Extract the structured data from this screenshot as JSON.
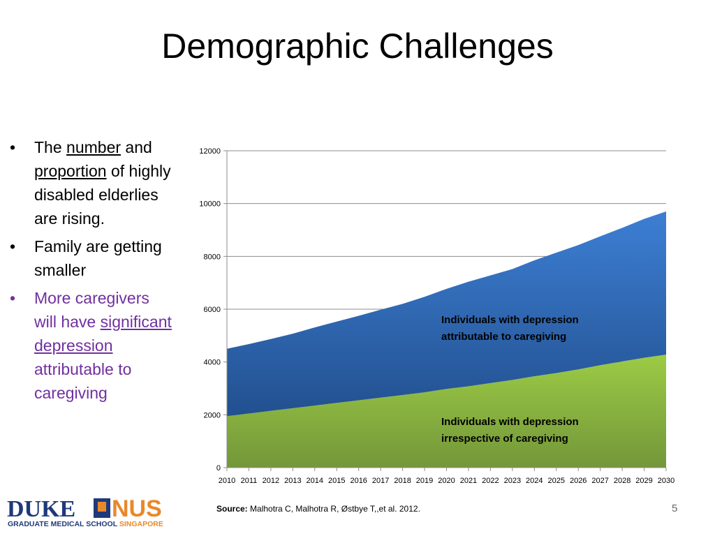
{
  "slide": {
    "title": "Demographic Challenges",
    "page_number": "5"
  },
  "bullets": {
    "b1": {
      "t1": "The ",
      "u1": "number",
      "t2": " and ",
      "u2": "proportion",
      "t3": " of highly disabled elderlies are rising."
    },
    "b2": {
      "t1": "Family are getting smaller"
    },
    "b3": {
      "t1": "More caregivers will have ",
      "u1": "significant depression",
      "t2": " attributable to caregiving"
    }
  },
  "source": {
    "label": "Source:",
    "text": " Malhotra C, Malhotra R, Østbye T,,et al. 2012."
  },
  "logo": {
    "left_text": "DUKE",
    "right_text": "NUS",
    "subtitle_a": "GRADUATE MEDICAL SCHOOL ",
    "subtitle_b": "SINGAPORE",
    "colors": {
      "navy": "#1f3a7a",
      "orange": "#e8892a"
    }
  },
  "chart_data": {
    "type": "area",
    "stacked": true,
    "x": [
      "2010",
      "2011",
      "2012",
      "2013",
      "2014",
      "2015",
      "2016",
      "2017",
      "2018",
      "2019",
      "2020",
      "2021",
      "2022",
      "2023",
      "2024",
      "2025",
      "2026",
      "2027",
      "2028",
      "2029",
      "2030"
    ],
    "ylim": [
      0,
      12000
    ],
    "yticks": [
      "0",
      "2000",
      "4000",
      "6000",
      "8000",
      "10000",
      "12000"
    ],
    "grid": true,
    "series": [
      {
        "name": "Individuals with depression irrespective of caregiving",
        "values": [
          1950,
          2050,
          2150,
          2250,
          2350,
          2450,
          2550,
          2650,
          2750,
          2850,
          2980,
          3080,
          3200,
          3320,
          3460,
          3580,
          3720,
          3880,
          4020,
          4160,
          4280
        ],
        "color": "#8ab83d"
      },
      {
        "name": "Individuals with depression attributable to caregiving",
        "values": [
          2550,
          2630,
          2720,
          2820,
          2960,
          3080,
          3200,
          3330,
          3450,
          3620,
          3790,
          3960,
          4080,
          4200,
          4390,
          4560,
          4710,
          4880,
          5060,
          5260,
          5420
        ],
        "color": "#3a73c0"
      }
    ],
    "annotations": [
      {
        "line1": "Individuals with depression",
        "line2": "attributable to caregiving"
      },
      {
        "line1": "Individuals with depression",
        "line2": "irrespective of caregiving"
      }
    ]
  }
}
